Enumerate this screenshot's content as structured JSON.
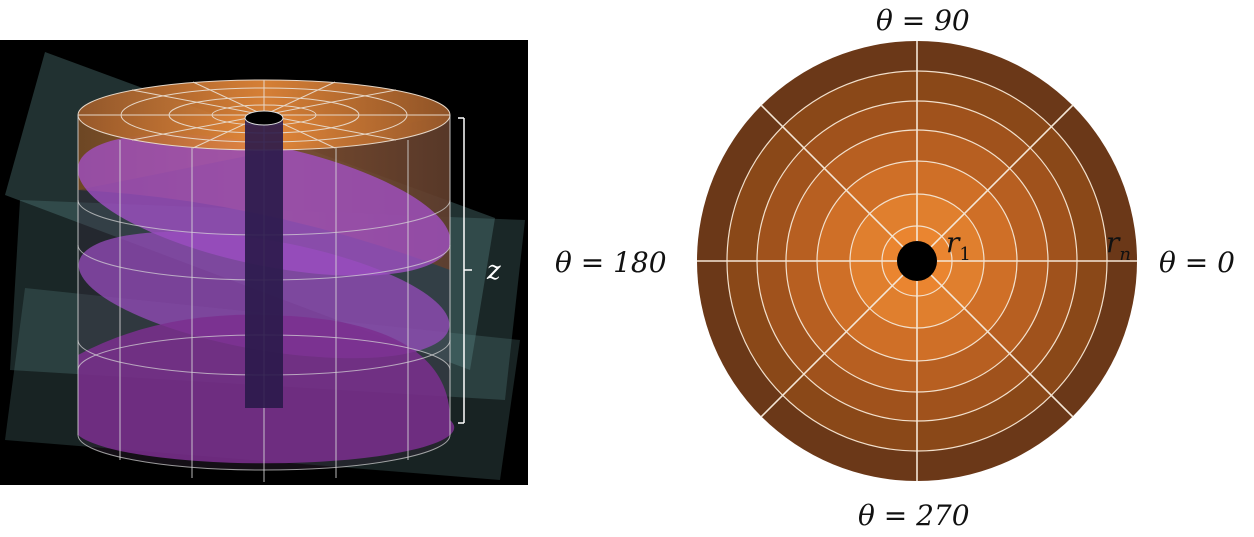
{
  "left_diagram": {
    "axis_label": "z",
    "colors": {
      "background": "#000000",
      "cylinder_top": "#d9823a",
      "slice": "#8e44b8",
      "planes": "#5f8c8c",
      "grid_lines": "#d8d8d8"
    }
  },
  "right_diagram": {
    "labels": {
      "theta_top": "θ = 90",
      "theta_left": "θ = 180",
      "theta_right": "θ = 0",
      "theta_bottom": "θ = 270",
      "inner_radius_base": "r",
      "inner_radius_sub": "1",
      "outer_radius_base": "r",
      "outer_radius_sub": "n"
    },
    "ring_colors": [
      "#ea8530",
      "#e07f2e",
      "#cf6f27",
      "#b75f21",
      "#a0521c",
      "#8a4818",
      "#6b3818"
    ],
    "center_color": "#000000",
    "line_color": "#f2e0cc"
  }
}
